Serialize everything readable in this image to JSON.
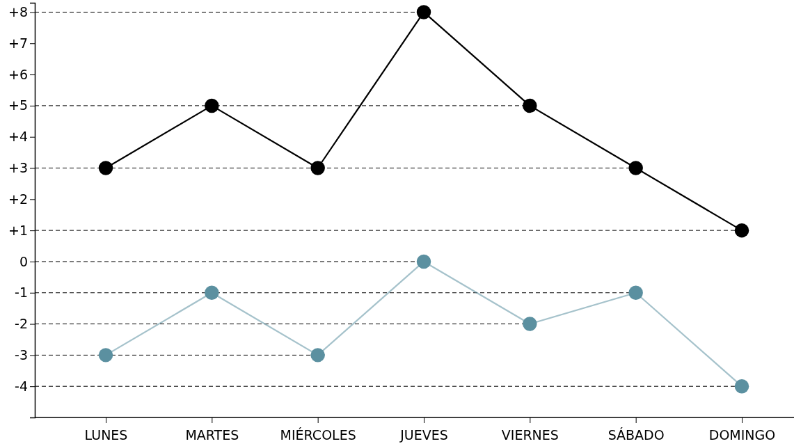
{
  "chart_data": {
    "type": "line",
    "categories": [
      "LUNES",
      "MARTES",
      "MIÉRCOLES",
      "JUEVES",
      "VIERNES",
      "SÁBADO",
      "DOMINGO"
    ],
    "series": [
      {
        "color": "#000000",
        "values": [
          3,
          5,
          3,
          8,
          5,
          3,
          1
        ]
      },
      {
        "color": "#5b90a0",
        "values": [
          -3,
          -1,
          -3,
          0,
          -2,
          -1,
          -4
        ]
      }
    ],
    "ylim": [
      -5,
      8.3
    ],
    "yticks": [
      {
        "value": -4,
        "label": "-4"
      },
      {
        "value": -3,
        "label": "-3"
      },
      {
        "value": -2,
        "label": "-2"
      },
      {
        "value": -1,
        "label": "-1"
      },
      0,
      {
        "value": 1,
        "label": "+1"
      },
      {
        "value": 2,
        "label": "+2"
      },
      {
        "value": 3,
        "label": "+3"
      },
      {
        "value": 4,
        "label": "+4"
      },
      {
        "value": 5,
        "label": "+5"
      },
      {
        "value": 6,
        "label": "+6"
      },
      {
        "value": 7,
        "label": "+7"
      },
      {
        "value": 8,
        "label": "+8"
      }
    ],
    "ref_lines": [
      {
        "axis": "y",
        "value": 8
      },
      {
        "axis": "y",
        "value": 5
      },
      {
        "axis": "y",
        "value": 3
      },
      {
        "axis": "y",
        "value": 1
      },
      {
        "axis": "y",
        "value": 0
      },
      {
        "axis": "y",
        "value": -1
      },
      {
        "axis": "y",
        "value": -2
      },
      {
        "axis": "y",
        "value": -3
      },
      {
        "axis": "y",
        "value": -4
      }
    ],
    "line_style": "solid",
    "marker": "circle"
  }
}
